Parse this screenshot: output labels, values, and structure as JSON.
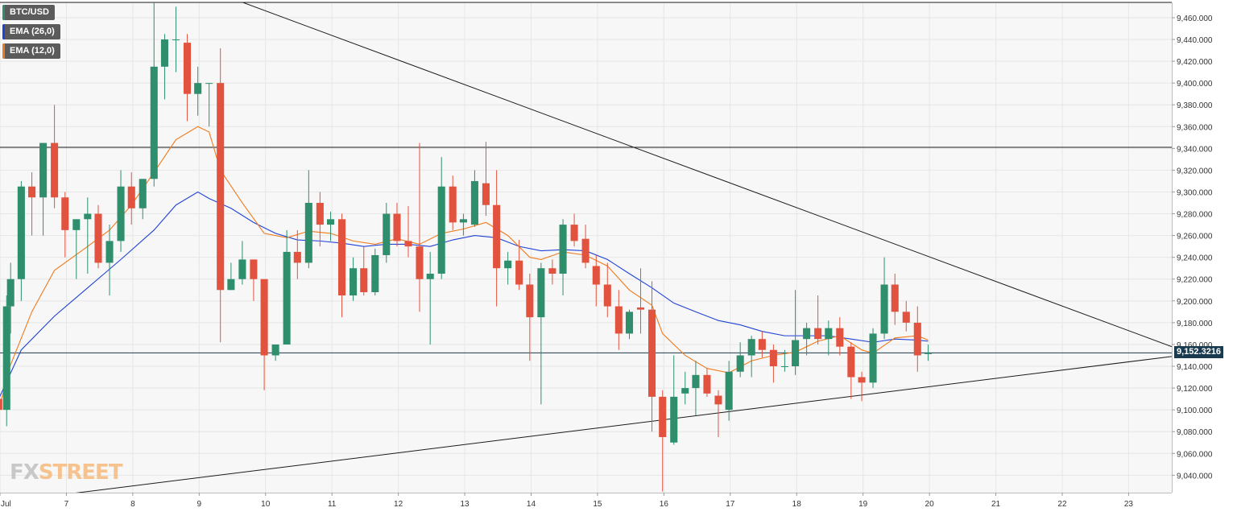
{
  "chart_data": {
    "type": "candlestick",
    "symbol": "BTC/USD",
    "legend": [
      {
        "label": "BTC/USD",
        "color": "#2f8f6d"
      },
      {
        "label": "EMA (26,0)",
        "color": "#2043d6"
      },
      {
        "label": "EMA (12,0)",
        "color": "#f07a1c"
      }
    ],
    "last_price": 9152.3216,
    "last_price_label": "9,152.3216",
    "y_ticks": [
      "9,040.000",
      "9,060.000",
      "9,080.000",
      "9,100.000",
      "9,120.000",
      "9,140.000",
      "9,160.000",
      "9,180.000",
      "9,200.000",
      "9,220.000",
      "9,240.000",
      "9,260.000",
      "9,280.000",
      "9,300.000",
      "9,320.000",
      "9,340.000",
      "9,360.000",
      "9,380.000",
      "9,400.000",
      "9,420.000",
      "9,440.000",
      "9,460.000"
    ],
    "y_tick_values": [
      9040,
      9060,
      9080,
      9100,
      9120,
      9140,
      9160,
      9180,
      9200,
      9220,
      9240,
      9260,
      9280,
      9300,
      9320,
      9340,
      9360,
      9380,
      9400,
      9420,
      9440,
      9460
    ],
    "ylim": [
      9024,
      9474
    ],
    "x_ticks": [
      {
        "label": "Jul",
        "day": 6
      },
      {
        "label": "7",
        "day": 7
      },
      {
        "label": "8",
        "day": 8
      },
      {
        "label": "9",
        "day": 9
      },
      {
        "label": "10",
        "day": 10
      },
      {
        "label": "11",
        "day": 11
      },
      {
        "label": "12",
        "day": 12
      },
      {
        "label": "13",
        "day": 13
      },
      {
        "label": "14",
        "day": 14
      },
      {
        "label": "15",
        "day": 15
      },
      {
        "label": "16",
        "day": 16
      },
      {
        "label": "17",
        "day": 17
      },
      {
        "label": "18",
        "day": 18
      },
      {
        "label": "19",
        "day": 19
      },
      {
        "label": "20",
        "day": 20
      },
      {
        "label": "21",
        "day": 21
      },
      {
        "label": "22",
        "day": 22
      },
      {
        "label": "23",
        "day": 23
      }
    ],
    "xlim": [
      6.0,
      23.65
    ],
    "candle_width_days": 0.11,
    "colors": {
      "up": "#2f8f6d",
      "down": "#e1533e",
      "ema26": "#2043d6",
      "ema12": "#f07a1c",
      "line": "#1b1b1b"
    },
    "candles": [
      {
        "t": 5.98,
        "o": 9110,
        "h": 9140,
        "l": 9090,
        "c": 9100
      },
      {
        "t": 6.1,
        "o": 9100,
        "h": 9205,
        "l": 9085,
        "c": 9195
      },
      {
        "t": 6.16,
        "o": 9195,
        "h": 9235,
        "l": 9170,
        "c": 9220
      },
      {
        "t": 6.32,
        "o": 9220,
        "h": 9310,
        "l": 9200,
        "c": 9305
      },
      {
        "t": 6.48,
        "o": 9305,
        "h": 9318,
        "l": 9260,
        "c": 9295
      },
      {
        "t": 6.65,
        "o": 9295,
        "h": 9345,
        "l": 9260,
        "c": 9345
      },
      {
        "t": 6.82,
        "o": 9345,
        "h": 9380,
        "l": 9285,
        "c": 9295
      },
      {
        "t": 6.98,
        "o": 9295,
        "h": 9300,
        "l": 9240,
        "c": 9265
      },
      {
        "t": 7.15,
        "o": 9265,
        "h": 9275,
        "l": 9220,
        "c": 9275
      },
      {
        "t": 7.32,
        "o": 9275,
        "h": 9295,
        "l": 9225,
        "c": 9280
      },
      {
        "t": 7.48,
        "o": 9280,
        "h": 9288,
        "l": 9230,
        "c": 9235
      },
      {
        "t": 7.65,
        "o": 9235,
        "h": 9270,
        "l": 9205,
        "c": 9255
      },
      {
        "t": 7.82,
        "o": 9255,
        "h": 9320,
        "l": 9245,
        "c": 9305
      },
      {
        "t": 7.98,
        "o": 9305,
        "h": 9318,
        "l": 9270,
        "c": 9285
      },
      {
        "t": 8.15,
        "o": 9285,
        "h": 9312,
        "l": 9275,
        "c": 9312
      },
      {
        "t": 8.32,
        "o": 9312,
        "h": 9475,
        "l": 9305,
        "c": 9415
      },
      {
        "t": 8.48,
        "o": 9415,
        "h": 9445,
        "l": 9385,
        "c": 9440
      },
      {
        "t": 8.65,
        "o": 9440,
        "h": 9470,
        "l": 9410,
        "c": 9440
      },
      {
        "t": 8.82,
        "o": 9437,
        "h": 9445,
        "l": 9365,
        "c": 9390
      },
      {
        "t": 8.98,
        "o": 9390,
        "h": 9415,
        "l": 9370,
        "c": 9400
      },
      {
        "t": 9.15,
        "o": 9400,
        "h": 9400,
        "l": 9360,
        "c": 9400
      },
      {
        "t": 9.32,
        "o": 9400,
        "h": 9432,
        "l": 9162,
        "c": 9210
      },
      {
        "t": 9.48,
        "o": 9210,
        "h": 9235,
        "l": 9210,
        "c": 9220
      },
      {
        "t": 9.65,
        "o": 9220,
        "h": 9255,
        "l": 9215,
        "c": 9238
      },
      {
        "t": 9.82,
        "o": 9238,
        "h": 9238,
        "l": 9200,
        "c": 9220
      },
      {
        "t": 9.98,
        "o": 9220,
        "h": 9220,
        "l": 9118,
        "c": 9150
      },
      {
        "t": 10.15,
        "o": 9150,
        "h": 9160,
        "l": 9145,
        "c": 9160
      },
      {
        "t": 10.32,
        "o": 9160,
        "h": 9265,
        "l": 9160,
        "c": 9245
      },
      {
        "t": 10.48,
        "o": 9245,
        "h": 9265,
        "l": 9220,
        "c": 9235
      },
      {
        "t": 10.65,
        "o": 9235,
        "h": 9320,
        "l": 9230,
        "c": 9290
      },
      {
        "t": 10.82,
        "o": 9290,
        "h": 9300,
        "l": 9250,
        "c": 9270
      },
      {
        "t": 10.98,
        "o": 9270,
        "h": 9282,
        "l": 9255,
        "c": 9275
      },
      {
        "t": 11.15,
        "o": 9275,
        "h": 9280,
        "l": 9185,
        "c": 9205
      },
      {
        "t": 11.32,
        "o": 9205,
        "h": 9240,
        "l": 9200,
        "c": 9230
      },
      {
        "t": 11.48,
        "o": 9230,
        "h": 9250,
        "l": 9205,
        "c": 9208
      },
      {
        "t": 11.65,
        "o": 9208,
        "h": 9248,
        "l": 9205,
        "c": 9242
      },
      {
        "t": 11.82,
        "o": 9242,
        "h": 9290,
        "l": 9235,
        "c": 9280
      },
      {
        "t": 11.98,
        "o": 9280,
        "h": 9290,
        "l": 9250,
        "c": 9255
      },
      {
        "t": 12.15,
        "o": 9255,
        "h": 9287,
        "l": 9240,
        "c": 9250
      },
      {
        "t": 12.32,
        "o": 9250,
        "h": 9345,
        "l": 9190,
        "c": 9220
      },
      {
        "t": 12.48,
        "o": 9220,
        "h": 9245,
        "l": 9160,
        "c": 9225
      },
      {
        "t": 12.65,
        "o": 9225,
        "h": 9332,
        "l": 9220,
        "c": 9305
      },
      {
        "t": 12.82,
        "o": 9305,
        "h": 9315,
        "l": 9265,
        "c": 9272
      },
      {
        "t": 12.98,
        "o": 9272,
        "h": 9280,
        "l": 9260,
        "c": 9275
      },
      {
        "t": 13.15,
        "o": 9270,
        "h": 9320,
        "l": 9268,
        "c": 9310
      },
      {
        "t": 13.32,
        "o": 9308,
        "h": 9346,
        "l": 9278,
        "c": 9288
      },
      {
        "t": 13.48,
        "o": 9288,
        "h": 9320,
        "l": 9195,
        "c": 9230
      },
      {
        "t": 13.65,
        "o": 9230,
        "h": 9245,
        "l": 9215,
        "c": 9237
      },
      {
        "t": 13.82,
        "o": 9237,
        "h": 9256,
        "l": 9210,
        "c": 9215
      },
      {
        "t": 13.98,
        "o": 9215,
        "h": 9225,
        "l": 9145,
        "c": 9185
      },
      {
        "t": 14.15,
        "o": 9185,
        "h": 9235,
        "l": 9105,
        "c": 9230
      },
      {
        "t": 14.32,
        "o": 9230,
        "h": 9238,
        "l": 9215,
        "c": 9225
      },
      {
        "t": 14.48,
        "o": 9225,
        "h": 9275,
        "l": 9205,
        "c": 9270
      },
      {
        "t": 14.65,
        "o": 9270,
        "h": 9280,
        "l": 9250,
        "c": 9255
      },
      {
        "t": 14.82,
        "o": 9257,
        "h": 9270,
        "l": 9230,
        "c": 9235
      },
      {
        "t": 14.98,
        "o": 9232,
        "h": 9242,
        "l": 9195,
        "c": 9215
      },
      {
        "t": 15.15,
        "o": 9215,
        "h": 9235,
        "l": 9185,
        "c": 9195
      },
      {
        "t": 15.32,
        "o": 9195,
        "h": 9210,
        "l": 9155,
        "c": 9170
      },
      {
        "t": 15.48,
        "o": 9170,
        "h": 9192,
        "l": 9165,
        "c": 9190
      },
      {
        "t": 15.65,
        "o": 9194,
        "h": 9230,
        "l": 9170,
        "c": 9192
      },
      {
        "t": 15.82,
        "o": 9192,
        "h": 9218,
        "l": 9080,
        "c": 9112
      },
      {
        "t": 15.98,
        "o": 9112,
        "h": 9118,
        "l": 9025,
        "c": 9075
      },
      {
        "t": 16.15,
        "o": 9070,
        "h": 9150,
        "l": 9068,
        "c": 9112
      },
      {
        "t": 16.32,
        "o": 9115,
        "h": 9135,
        "l": 9105,
        "c": 9120
      },
      {
        "t": 16.48,
        "o": 9120,
        "h": 9145,
        "l": 9095,
        "c": 9132
      },
      {
        "t": 16.65,
        "o": 9132,
        "h": 9138,
        "l": 9112,
        "c": 9115
      },
      {
        "t": 16.82,
        "o": 9113,
        "h": 9118,
        "l": 9075,
        "c": 9105
      },
      {
        "t": 16.98,
        "o": 9100,
        "h": 9145,
        "l": 9090,
        "c": 9135
      },
      {
        "t": 17.15,
        "o": 9135,
        "h": 9162,
        "l": 9130,
        "c": 9150
      },
      {
        "t": 17.32,
        "o": 9150,
        "h": 9168,
        "l": 9130,
        "c": 9165
      },
      {
        "t": 17.48,
        "o": 9165,
        "h": 9172,
        "l": 9148,
        "c": 9155
      },
      {
        "t": 17.65,
        "o": 9155,
        "h": 9160,
        "l": 9125,
        "c": 9140
      },
      {
        "t": 17.82,
        "o": 9140,
        "h": 9155,
        "l": 9135,
        "c": 9140
      },
      {
        "t": 17.98,
        "o": 9140,
        "h": 9210,
        "l": 9132,
        "c": 9164
      },
      {
        "t": 18.15,
        "o": 9165,
        "h": 9180,
        "l": 9150,
        "c": 9175
      },
      {
        "t": 18.32,
        "o": 9175,
        "h": 9205,
        "l": 9160,
        "c": 9165
      },
      {
        "t": 18.48,
        "o": 9165,
        "h": 9182,
        "l": 9150,
        "c": 9175
      },
      {
        "t": 18.65,
        "o": 9175,
        "h": 9185,
        "l": 9150,
        "c": 9158
      },
      {
        "t": 18.82,
        "o": 9158,
        "h": 9162,
        "l": 9110,
        "c": 9130
      },
      {
        "t": 18.98,
        "o": 9130,
        "h": 9135,
        "l": 9108,
        "c": 9125
      },
      {
        "t": 19.15,
        "o": 9125,
        "h": 9175,
        "l": 9120,
        "c": 9170
      },
      {
        "t": 19.32,
        "o": 9170,
        "h": 9240,
        "l": 9165,
        "c": 9215
      },
      {
        "t": 19.48,
        "o": 9215,
        "h": 9225,
        "l": 9178,
        "c": 9190
      },
      {
        "t": 19.65,
        "o": 9190,
        "h": 9200,
        "l": 9172,
        "c": 9180
      },
      {
        "t": 19.82,
        "o": 9180,
        "h": 9195,
        "l": 9135,
        "c": 9150
      },
      {
        "t": 19.98,
        "o": 9152,
        "h": 9160,
        "l": 9145,
        "c": 9152
      }
    ],
    "ema12": [
      [
        5.98,
        9100
      ],
      [
        6.15,
        9140
      ],
      [
        6.48,
        9190
      ],
      [
        6.82,
        9228
      ],
      [
        7.32,
        9250
      ],
      [
        7.65,
        9265
      ],
      [
        7.98,
        9288
      ],
      [
        8.32,
        9318
      ],
      [
        8.65,
        9348
      ],
      [
        8.98,
        9360
      ],
      [
        9.15,
        9355
      ],
      [
        9.32,
        9320
      ],
      [
        9.65,
        9290
      ],
      [
        9.98,
        9262
      ],
      [
        10.32,
        9258
      ],
      [
        10.65,
        9264
      ],
      [
        10.98,
        9262
      ],
      [
        11.32,
        9255
      ],
      [
        11.65,
        9252
      ],
      [
        11.98,
        9257
      ],
      [
        12.32,
        9252
      ],
      [
        12.65,
        9262
      ],
      [
        12.98,
        9266
      ],
      [
        13.32,
        9272
      ],
      [
        13.65,
        9260
      ],
      [
        13.98,
        9240
      ],
      [
        14.15,
        9238
      ],
      [
        14.48,
        9245
      ],
      [
        14.82,
        9242
      ],
      [
        15.15,
        9232
      ],
      [
        15.48,
        9210
      ],
      [
        15.82,
        9196
      ],
      [
        15.98,
        9170
      ],
      [
        16.32,
        9150
      ],
      [
        16.65,
        9138
      ],
      [
        16.98,
        9134
      ],
      [
        17.32,
        9145
      ],
      [
        17.65,
        9150
      ],
      [
        17.98,
        9153
      ],
      [
        18.32,
        9163
      ],
      [
        18.65,
        9168
      ],
      [
        18.98,
        9155
      ],
      [
        19.15,
        9152
      ],
      [
        19.48,
        9166
      ],
      [
        19.82,
        9168
      ],
      [
        19.98,
        9164
      ]
    ],
    "ema26": [
      [
        5.98,
        9110
      ],
      [
        6.32,
        9155
      ],
      [
        6.82,
        9186
      ],
      [
        7.32,
        9212
      ],
      [
        7.82,
        9238
      ],
      [
        8.32,
        9265
      ],
      [
        8.65,
        9288
      ],
      [
        8.98,
        9300
      ],
      [
        9.15,
        9294
      ],
      [
        9.48,
        9285
      ],
      [
        9.82,
        9272
      ],
      [
        10.15,
        9262
      ],
      [
        10.48,
        9256
      ],
      [
        10.82,
        9255
      ],
      [
        11.15,
        9253
      ],
      [
        11.48,
        9250
      ],
      [
        11.82,
        9252
      ],
      [
        12.15,
        9252
      ],
      [
        12.48,
        9250
      ],
      [
        12.82,
        9256
      ],
      [
        13.15,
        9260
      ],
      [
        13.48,
        9258
      ],
      [
        13.82,
        9250
      ],
      [
        14.15,
        9246
      ],
      [
        14.48,
        9247
      ],
      [
        14.82,
        9246
      ],
      [
        15.15,
        9238
      ],
      [
        15.48,
        9225
      ],
      [
        15.82,
        9212
      ],
      [
        16.15,
        9198
      ],
      [
        16.48,
        9190
      ],
      [
        16.82,
        9182
      ],
      [
        17.15,
        9178
      ],
      [
        17.48,
        9172
      ],
      [
        17.82,
        9168
      ],
      [
        18.15,
        9168
      ],
      [
        18.48,
        9168
      ],
      [
        18.82,
        9165
      ],
      [
        19.15,
        9162
      ],
      [
        19.48,
        9165
      ],
      [
        19.82,
        9164
      ],
      [
        19.98,
        9163
      ]
    ],
    "trendlines": [
      {
        "name": "upper-resistance-trendline",
        "from": [
          7.0,
          9534
        ],
        "to": [
          23.65,
          9158
        ]
      },
      {
        "name": "lower-support-trendline",
        "from": [
          6.0,
          9015
        ],
        "to": [
          23.65,
          9149
        ]
      }
    ],
    "horizontal_lines": [
      {
        "name": "horizontal-resistance-line",
        "value": 9341
      },
      {
        "name": "top-border-line",
        "value": 9474
      },
      {
        "name": "current-price-line",
        "value": 9152.3216
      }
    ],
    "grid": true
  },
  "branding": {
    "logo_prefix": "FX",
    "logo_suffix": "STREET"
  }
}
